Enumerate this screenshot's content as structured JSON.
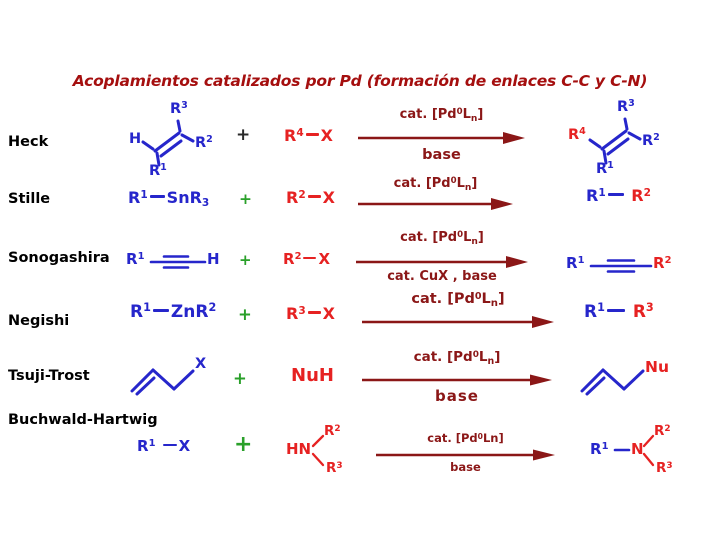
{
  "title": "Acoplamientos catalizados por Pd (formación de enlaces C-C y C-N)",
  "colors": {
    "title_red": "#a50f0f",
    "dark_red": "#8b1717",
    "blue": "#2626cb",
    "red": "#e62222",
    "green": "#2aa02a",
    "black": "#2a2a2a"
  },
  "rows": [
    {
      "name": "Heck",
      "plus": "+",
      "reactant1": {
        "h": [
          {
            "t": "H"
          }
        ],
        "r1": [
          {
            "t": "R"
          },
          {
            "t": "1",
            "sup": true
          }
        ],
        "r2": [
          {
            "t": "R"
          },
          {
            "t": "2",
            "sup": true
          }
        ],
        "r3": [
          {
            "t": "R"
          },
          {
            "t": "3",
            "sup": true
          }
        ]
      },
      "reactant2": [
        {
          "t": "R"
        },
        {
          "t": "4",
          "sup": true
        },
        {
          "bond": true,
          "w": 13
        },
        {
          "t": "X"
        }
      ],
      "arrow": {
        "above": [
          {
            "t": "cat. [Pd"
          },
          {
            "t": "0",
            "sup": true
          },
          {
            "t": "L"
          },
          {
            "t": "n",
            "sub": true
          },
          {
            "t": "]"
          }
        ],
        "below": [
          {
            "t": "base"
          }
        ]
      },
      "product": {
        "r4": [
          {
            "t": "R"
          },
          {
            "t": "4",
            "sup": true
          }
        ],
        "r1": [
          {
            "t": "R"
          },
          {
            "t": "1",
            "sup": true
          }
        ],
        "r2": [
          {
            "t": "R"
          },
          {
            "t": "2",
            "sup": true
          }
        ],
        "r3": [
          {
            "t": "R"
          },
          {
            "t": "3",
            "sup": true
          }
        ]
      }
    },
    {
      "name": "Stille",
      "plus": "+",
      "reactant1": [
        {
          "t": "R"
        },
        {
          "t": "1",
          "sup": true
        },
        {
          "bond": true,
          "w": 15
        },
        {
          "t": "SnR"
        },
        {
          "t": "3",
          "sub": true
        }
      ],
      "reactant2": [
        {
          "t": "R"
        },
        {
          "t": "2",
          "sup": true
        },
        {
          "bond": true,
          "w": 13
        },
        {
          "t": "X"
        }
      ],
      "arrow": {
        "above": [
          {
            "t": "cat. [Pd"
          },
          {
            "t": "0",
            "sup": true
          },
          {
            "t": "L"
          },
          {
            "t": "n",
            "sub": true
          },
          {
            "t": "]"
          }
        ]
      },
      "product": [
        {
          "t": "R",
          "c": "blue"
        },
        {
          "t": "1",
          "sup": true,
          "c": "blue"
        },
        {
          "bond": true,
          "w": 16,
          "c": "blue"
        },
        {
          "t": " "
        },
        {
          "t": "R",
          "c": "red"
        },
        {
          "t": "2",
          "sup": true,
          "c": "red"
        }
      ]
    },
    {
      "name": "Sonogashira",
      "plus": "+",
      "reactant1": {
        "r1": [
          {
            "t": "R"
          },
          {
            "t": "1",
            "sup": true
          }
        ],
        "h": [
          {
            "t": "H"
          }
        ]
      },
      "reactant2": [
        {
          "t": "R"
        },
        {
          "t": "2",
          "sup": true
        },
        {
          "bond": true,
          "w": 13
        },
        {
          "t": "X"
        }
      ],
      "arrow": {
        "above": [
          {
            "t": "cat. [Pd"
          },
          {
            "t": "0",
            "sup": true
          },
          {
            "t": "L"
          },
          {
            "t": "n",
            "sub": true
          },
          {
            "t": "]"
          }
        ],
        "below": [
          {
            "t": "cat. CuX , base"
          }
        ]
      },
      "product": {
        "r1": [
          {
            "t": "R"
          },
          {
            "t": "1",
            "sup": true
          }
        ],
        "r2": [
          {
            "t": "R"
          },
          {
            "t": "2",
            "sup": true
          }
        ]
      }
    },
    {
      "name": "Negishi",
      "plus": "+",
      "reactant1": [
        {
          "t": "R"
        },
        {
          "t": "1",
          "sup": true
        },
        {
          "bond": true,
          "w": 16
        },
        {
          "t": "ZnR"
        },
        {
          "t": "2",
          "sup": true
        }
      ],
      "reactant2": [
        {
          "t": "R"
        },
        {
          "t": "3",
          "sup": true
        },
        {
          "bond": true,
          "w": 13
        },
        {
          "t": "X"
        }
      ],
      "arrow": {
        "above": [
          {
            "t": "cat. [Pd"
          },
          {
            "t": "0",
            "sup": true
          },
          {
            "t": "L"
          },
          {
            "t": "n",
            "sub": true
          },
          {
            "t": "]"
          }
        ]
      },
      "product": [
        {
          "t": "R",
          "c": "blue"
        },
        {
          "t": "1",
          "sup": true,
          "c": "blue"
        },
        {
          "bond": true,
          "w": 18,
          "c": "blue"
        },
        {
          "t": " "
        },
        {
          "t": "R",
          "c": "red"
        },
        {
          "t": "3",
          "sup": true,
          "c": "red"
        }
      ]
    },
    {
      "name": "Tsuji-Trost",
      "plus": "+",
      "reactant1": {
        "x": [
          {
            "t": "X"
          }
        ]
      },
      "reactant2": [
        {
          "t": "NuH"
        }
      ],
      "arrow": {
        "above": [
          {
            "t": "cat. [Pd"
          },
          {
            "t": "0",
            "sup": true
          },
          {
            "t": "L"
          },
          {
            "t": "n",
            "sub": true
          },
          {
            "t": "]"
          }
        ],
        "below": [
          {
            "t": "base"
          }
        ]
      },
      "product": {
        "nu": [
          {
            "t": "Nu"
          }
        ]
      }
    },
    {
      "name": "Buchwald-Hartwig",
      "plus": "+",
      "reactant1": [
        {
          "t": "R"
        },
        {
          "t": "1",
          "sup": true
        },
        {
          "t": " "
        },
        {
          "bond": true,
          "w": 14
        },
        {
          "t": "X"
        }
      ],
      "reactant2": {
        "hn": [
          {
            "t": "HN"
          }
        ],
        "r2": [
          {
            "t": "R"
          },
          {
            "t": "2",
            "sup": true
          }
        ],
        "r3": [
          {
            "t": "R"
          },
          {
            "t": "3",
            "sup": true
          }
        ]
      },
      "arrow": {
        "above": [
          {
            "t": "cat. [Pd"
          },
          {
            "t": "0",
            "sup": true
          },
          {
            "t": "Ln]"
          }
        ],
        "below": [
          {
            "t": "base"
          }
        ]
      },
      "product": {
        "r1": [
          {
            "t": "R"
          },
          {
            "t": "1",
            "sup": true
          }
        ],
        "n": [
          {
            "t": "N"
          }
        ],
        "r2": [
          {
            "t": "R"
          },
          {
            "t": "2",
            "sup": true
          }
        ],
        "r3": [
          {
            "t": "R"
          },
          {
            "t": "3",
            "sup": true
          }
        ]
      }
    }
  ]
}
